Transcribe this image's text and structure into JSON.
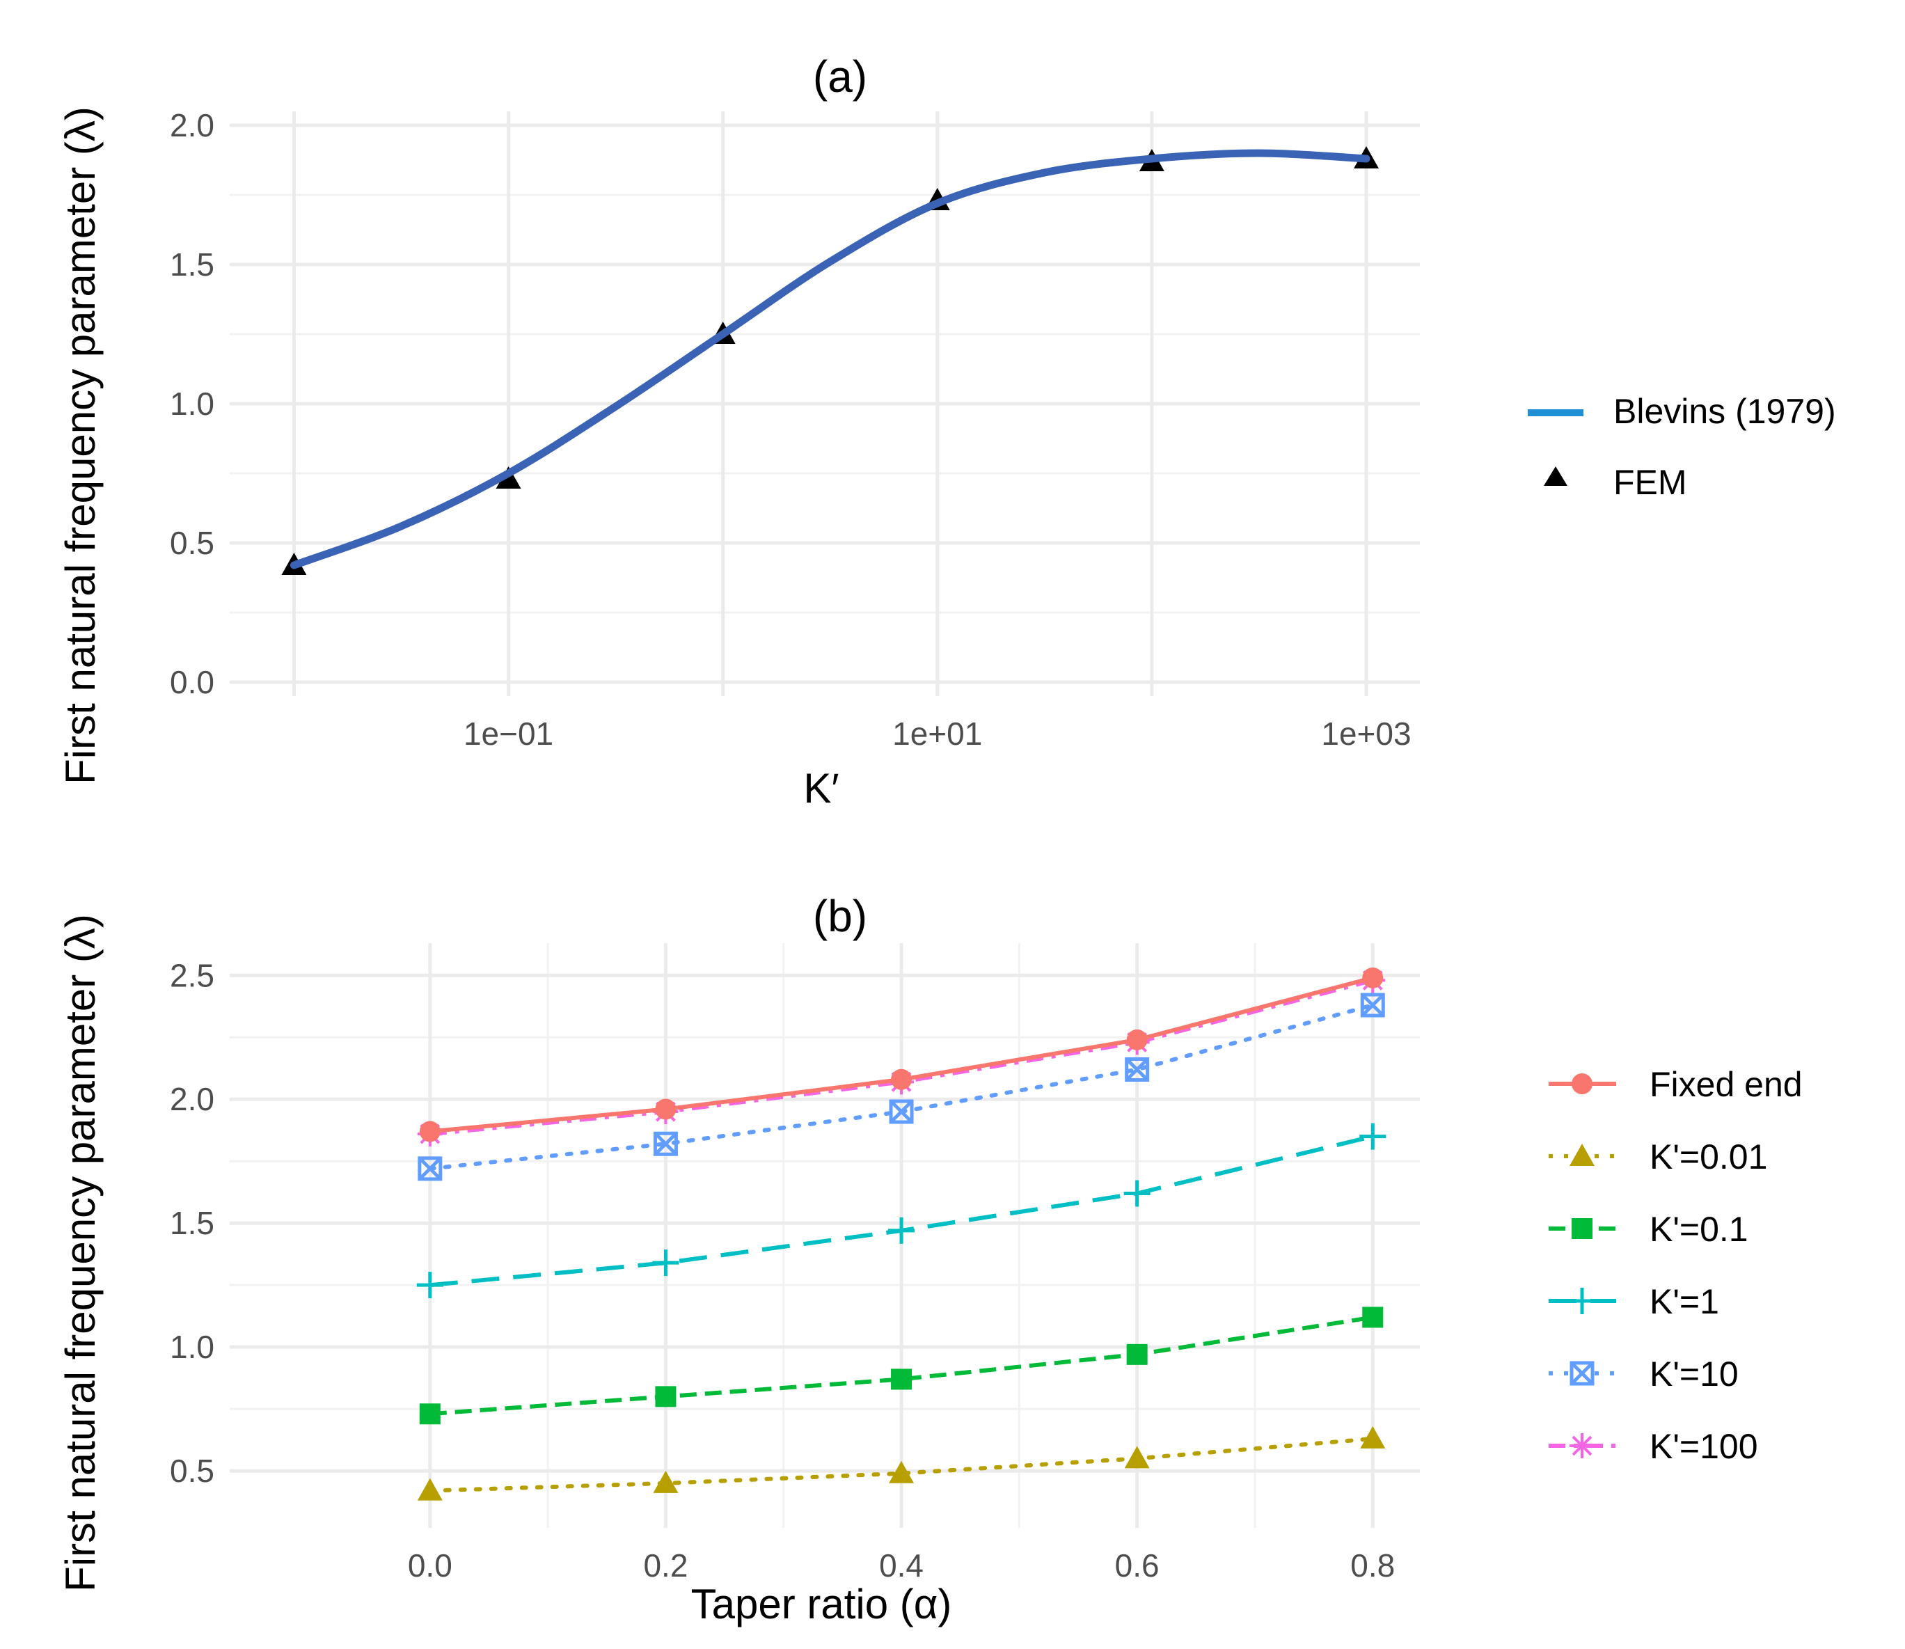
{
  "chart_data": [
    {
      "type": "line",
      "title": "(a)",
      "xlabel": "K′",
      "ylabel": "First natural frequency parameter (λ)",
      "x_scale": "log10",
      "xlim_log10": [
        -2.3,
        3.25
      ],
      "ylim": [
        -0.05,
        2.05
      ],
      "x_ticks": [
        0.1,
        10,
        1000
      ],
      "x_tick_labels": [
        "1e−01",
        "1e+01",
        "1e+03"
      ],
      "y_ticks": [
        0.0,
        0.5,
        1.0,
        1.5,
        2.0
      ],
      "y_tick_labels": [
        "0.0",
        "0.5",
        "1.0",
        "1.5",
        "2.0"
      ],
      "series": [
        {
          "name": "Blevins (1979)",
          "kind": "line",
          "color": "#3a62b5",
          "legend_color": "#1f8fd6",
          "x": [
            0.01,
            0.0316,
            0.1,
            0.316,
            1,
            3.16,
            10,
            31.6,
            100,
            316,
            1000
          ],
          "values": [
            0.42,
            0.56,
            0.75,
            0.99,
            1.25,
            1.51,
            1.72,
            1.83,
            1.88,
            1.9,
            1.88
          ]
        },
        {
          "name": "FEM",
          "kind": "points",
          "marker": "triangle",
          "color": "#000000",
          "x": [
            0.01,
            0.1,
            1,
            10,
            100,
            1000
          ],
          "values": [
            0.42,
            0.73,
            1.25,
            1.73,
            1.87,
            1.88
          ]
        }
      ],
      "legend": "right"
    },
    {
      "type": "line",
      "title": "(b)",
      "xlabel": "Taper ratio (α)",
      "ylabel": "First natural frequency parameter (λ)",
      "xlim": [
        -0.17,
        0.84
      ],
      "ylim": [
        0.27,
        2.63
      ],
      "x_ticks": [
        0.0,
        0.2,
        0.4,
        0.6,
        0.8
      ],
      "x_tick_labels": [
        "0.0",
        "0.2",
        "0.4",
        "0.6",
        "0.8"
      ],
      "y_ticks": [
        0.5,
        1.0,
        1.5,
        2.0,
        2.5
      ],
      "y_tick_labels": [
        "0.5",
        "1.0",
        "1.5",
        "2.0",
        "2.5"
      ],
      "categories": [
        0.0,
        0.2,
        0.4,
        0.6,
        0.8
      ],
      "series": [
        {
          "name": "Fixed end",
          "color": "#f8766d",
          "dash": "solid",
          "marker": "circle",
          "values": [
            1.87,
            1.96,
            2.08,
            2.24,
            2.49
          ]
        },
        {
          "name": "K'=0.01",
          "color": "#b79f00",
          "dash": "dotted",
          "marker": "triangle",
          "values": [
            0.42,
            0.45,
            0.49,
            0.55,
            0.63
          ]
        },
        {
          "name": "K'=0.1",
          "color": "#00ba38",
          "dash": "dashed",
          "marker": "square",
          "values": [
            0.73,
            0.8,
            0.87,
            0.97,
            1.12
          ]
        },
        {
          "name": "K'=1",
          "color": "#00bfc4",
          "dash": "longdash",
          "marker": "plus",
          "values": [
            1.25,
            1.34,
            1.47,
            1.62,
            1.85
          ]
        },
        {
          "name": "K'=10",
          "color": "#619cff",
          "dash": "dotted",
          "marker": "boxcross",
          "values": [
            1.72,
            1.82,
            1.95,
            2.12,
            2.38
          ]
        },
        {
          "name": "K'=100",
          "color": "#f564e3",
          "dash": "dashdot",
          "marker": "asterisk",
          "values": [
            1.86,
            1.95,
            2.07,
            2.23,
            2.48
          ]
        }
      ],
      "legend": "right"
    }
  ]
}
